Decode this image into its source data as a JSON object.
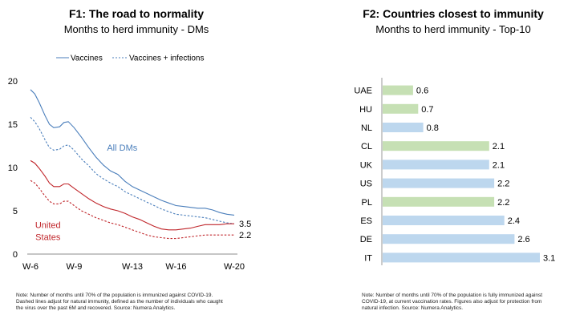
{
  "chart_data": [
    {
      "type": "line",
      "title": "F1: The road to normality",
      "subtitle": "Months to herd immunity - DMs",
      "legend": {
        "placement": "top-center",
        "entries": [
          "Vaccines",
          "Vaccines + infections"
        ]
      },
      "x_tick_labels": [
        "W-6",
        "W-9",
        "W-13",
        "W-16",
        "W-20"
      ],
      "x_tick_weeks": [
        6,
        9,
        13,
        16,
        20
      ],
      "ylim": [
        0,
        20
      ],
      "yticks": [
        0,
        5,
        10,
        15,
        20
      ],
      "grid": false,
      "series": [
        {
          "group": "All DMs",
          "style": "Vaccines",
          "color": "#4a7ebb",
          "dash": false,
          "x": [
            6,
            6.3,
            6.6,
            7,
            7.3,
            7.6,
            8,
            8.3,
            8.6,
            9,
            9.5,
            10,
            10.5,
            11,
            11.5,
            12,
            12.5,
            13,
            13.5,
            14,
            14.5,
            15,
            15.5,
            16,
            16.5,
            17,
            17.5,
            18,
            18.5,
            19,
            19.5,
            20
          ],
          "y": [
            19,
            18.5,
            17.5,
            16,
            15,
            14.6,
            14.7,
            15.2,
            15.3,
            14.6,
            13.5,
            12.3,
            11.2,
            10.3,
            9.6,
            9.2,
            8.4,
            7.8,
            7.4,
            7,
            6.6,
            6.2,
            5.9,
            5.6,
            5.5,
            5.4,
            5.3,
            5.3,
            5.1,
            4.8,
            4.6,
            4.5
          ]
        },
        {
          "group": "All DMs",
          "style": "Vaccines + infections",
          "color": "#4a7ebb",
          "dash": true,
          "x": [
            6,
            6.3,
            6.6,
            7,
            7.3,
            7.6,
            8,
            8.3,
            8.6,
            9,
            9.5,
            10,
            10.5,
            11,
            11.5,
            12,
            12.5,
            13,
            13.5,
            14,
            14.5,
            15,
            15.5,
            16,
            16.5,
            17,
            17.5,
            18,
            18.5,
            19,
            19.5,
            20
          ],
          "y": [
            15.8,
            15.3,
            14.5,
            13.2,
            12.3,
            12,
            12.1,
            12.5,
            12.6,
            12,
            11,
            10.2,
            9.3,
            8.7,
            8.2,
            7.8,
            7.2,
            6.8,
            6.4,
            6,
            5.6,
            5.2,
            4.9,
            4.6,
            4.5,
            4.4,
            4.3,
            4.2,
            4,
            3.8,
            3.6,
            3.5
          ]
        },
        {
          "group": "United States",
          "style": "Vaccines",
          "color": "#c0262b",
          "dash": false,
          "x": [
            6,
            6.3,
            6.6,
            7,
            7.3,
            7.6,
            8,
            8.3,
            8.6,
            9,
            9.5,
            10,
            10.5,
            11,
            11.5,
            12,
            12.5,
            13,
            13.5,
            14,
            14.5,
            15,
            15.5,
            16,
            16.5,
            17,
            17.5,
            18,
            18.5,
            19,
            19.5,
            20
          ],
          "y": [
            10.8,
            10.5,
            9.9,
            9,
            8.2,
            7.8,
            7.8,
            8.1,
            8.1,
            7.6,
            7,
            6.4,
            5.9,
            5.5,
            5.2,
            5,
            4.7,
            4.3,
            4,
            3.6,
            3.2,
            2.9,
            2.8,
            2.8,
            2.9,
            3,
            3.2,
            3.4,
            3.4,
            3.4,
            3.5,
            3.5
          ]
        },
        {
          "group": "United States",
          "style": "Vaccines + infections",
          "color": "#c0262b",
          "dash": true,
          "x": [
            6,
            6.3,
            6.6,
            7,
            7.3,
            7.6,
            8,
            8.3,
            8.6,
            9,
            9.5,
            10,
            10.5,
            11,
            11.5,
            12,
            12.5,
            13,
            13.5,
            14,
            14.5,
            15,
            15.5,
            16,
            16.5,
            17,
            17.5,
            18,
            18.5,
            19,
            19.5,
            20
          ],
          "y": [
            8.5,
            8.2,
            7.6,
            6.7,
            6.1,
            5.8,
            5.8,
            6.1,
            6.1,
            5.6,
            5,
            4.6,
            4.2,
            3.9,
            3.6,
            3.4,
            3.1,
            2.8,
            2.5,
            2.2,
            2,
            1.9,
            1.8,
            1.8,
            1.9,
            2,
            2.1,
            2.2,
            2.2,
            2.2,
            2.2,
            2.2
          ]
        }
      ],
      "annotations": [
        {
          "text": "All DMs",
          "x": 12.3,
          "y": 12.3,
          "color": "#4a7ebb"
        },
        {
          "text": "United",
          "x": 7.2,
          "y": 3.4,
          "color": "#c0262b"
        },
        {
          "text": "States",
          "x": 7.2,
          "y": 2.0,
          "color": "#c0262b"
        },
        {
          "text": "3.5",
          "x": 20.5,
          "y": 3.5,
          "color": "#000000"
        },
        {
          "text": "2.2",
          "x": 20.5,
          "y": 2.2,
          "color": "#000000"
        }
      ]
    },
    {
      "type": "bar",
      "orientation": "horizontal",
      "title": "F2: Countries closest to immunity",
      "subtitle": "Months to herd immunity - Top-10",
      "categories": [
        "UAE",
        "HU",
        "NL",
        "CL",
        "UK",
        "US",
        "PL",
        "ES",
        "DE",
        "IT"
      ],
      "values": [
        0.6,
        0.7,
        0.8,
        2.1,
        2.1,
        2.2,
        2.2,
        2.4,
        2.6,
        3.1
      ],
      "value_labels": [
        "0.6",
        "0.7",
        "0.8",
        "2.1",
        "2.1",
        "2.2",
        "2.2",
        "2.4",
        "2.6",
        "3.1"
      ],
      "bar_colors": [
        "#c6e0b4",
        "#c6e0b4",
        "#bdd7ee",
        "#c6e0b4",
        "#bdd7ee",
        "#bdd7ee",
        "#c6e0b4",
        "#bdd7ee",
        "#bdd7ee",
        "#bdd7ee"
      ],
      "grid": false
    }
  ],
  "notes": {
    "left": [
      "Note: Number of months until 70% of the population is immunized against COVID-19.",
      "Dashed lines adjust for natural immunity, defined as the number of individuals who caught",
      "the virus over the past 6M and recovered. Source: Numera Analytics."
    ],
    "right": [
      "Note: Number of months until 70% of the population is fully immunized against",
      "COVID-19, at current vaccination rates. Figures also adjust for protection from",
      "natural infection. Source: Numera Analytics."
    ]
  }
}
